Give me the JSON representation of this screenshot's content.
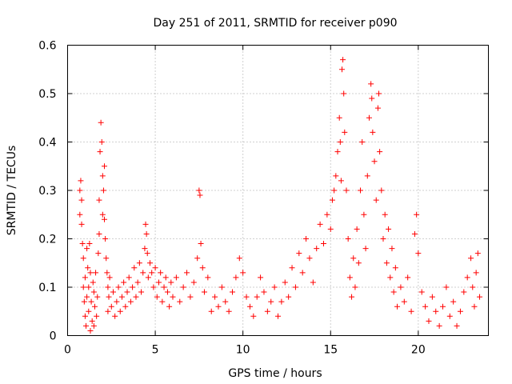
{
  "chart_data": {
    "type": "scatter",
    "title": "Day 251 of 2011, SRMTID for receiver p090",
    "xlabel": "GPS time / hours",
    "ylabel": "SRMTID / TECUs",
    "xlim": [
      0,
      24
    ],
    "ylim": [
      0,
      0.6
    ],
    "xticks": [
      0,
      5,
      10,
      15,
      20
    ],
    "xtick_labels": [
      "0",
      "5",
      "10",
      "15",
      "20"
    ],
    "yticks": [
      0,
      0.1,
      0.2,
      0.3,
      0.4,
      0.5,
      0.6
    ],
    "ytick_labels": [
      "0",
      "0.1",
      "0.2",
      "0.3",
      "0.4",
      "0.5",
      "0.6"
    ],
    "grid": true,
    "marker": "+",
    "color": "#ff0000",
    "series": [
      {
        "name": "SRMTID",
        "points": [
          [
            0.7,
            0.3
          ],
          [
            0.7,
            0.25
          ],
          [
            0.75,
            0.32
          ],
          [
            0.8,
            0.28
          ],
          [
            0.8,
            0.23
          ],
          [
            0.85,
            0.19
          ],
          [
            0.9,
            0.16
          ],
          [
            0.9,
            0.1
          ],
          [
            0.95,
            0.07
          ],
          [
            1.0,
            0.04
          ],
          [
            1.0,
            0.12
          ],
          [
            1.05,
            0.02
          ],
          [
            1.1,
            0.08
          ],
          [
            1.1,
            0.18
          ],
          [
            1.15,
            0.14
          ],
          [
            1.2,
            0.05
          ],
          [
            1.2,
            0.1
          ],
          [
            1.25,
            0.19
          ],
          [
            1.3,
            0.01
          ],
          [
            1.3,
            0.13
          ],
          [
            1.35,
            0.07
          ],
          [
            1.4,
            0.03
          ],
          [
            1.45,
            0.11
          ],
          [
            1.5,
            0.09
          ],
          [
            1.5,
            0.02
          ],
          [
            1.55,
            0.06
          ],
          [
            1.6,
            0.13
          ],
          [
            1.65,
            0.04
          ],
          [
            1.7,
            0.08
          ],
          [
            1.75,
            0.17
          ],
          [
            1.8,
            0.21
          ],
          [
            1.8,
            0.28
          ],
          [
            1.85,
            0.38
          ],
          [
            1.9,
            0.44
          ],
          [
            1.95,
            0.4
          ],
          [
            2.0,
            0.33
          ],
          [
            2.0,
            0.25
          ],
          [
            2.05,
            0.3
          ],
          [
            2.1,
            0.35
          ],
          [
            2.1,
            0.24
          ],
          [
            2.15,
            0.2
          ],
          [
            2.2,
            0.16
          ],
          [
            2.25,
            0.13
          ],
          [
            2.3,
            0.1
          ],
          [
            2.3,
            0.05
          ],
          [
            2.35,
            0.08
          ],
          [
            2.4,
            0.12
          ],
          [
            2.5,
            0.06
          ],
          [
            2.6,
            0.09
          ],
          [
            2.7,
            0.04
          ],
          [
            2.8,
            0.07
          ],
          [
            2.9,
            0.1
          ],
          [
            3.0,
            0.05
          ],
          [
            3.1,
            0.08
          ],
          [
            3.2,
            0.11
          ],
          [
            3.3,
            0.06
          ],
          [
            3.4,
            0.09
          ],
          [
            3.5,
            0.12
          ],
          [
            3.6,
            0.07
          ],
          [
            3.7,
            0.1
          ],
          [
            3.8,
            0.14
          ],
          [
            3.9,
            0.08
          ],
          [
            4.0,
            0.11
          ],
          [
            4.1,
            0.15
          ],
          [
            4.2,
            0.09
          ],
          [
            4.3,
            0.13
          ],
          [
            4.4,
            0.18
          ],
          [
            4.45,
            0.23
          ],
          [
            4.5,
            0.21
          ],
          [
            4.55,
            0.17
          ],
          [
            4.6,
            0.12
          ],
          [
            4.7,
            0.15
          ],
          [
            4.8,
            0.13
          ],
          [
            4.9,
            0.1
          ],
          [
            5.0,
            0.14
          ],
          [
            5.1,
            0.08
          ],
          [
            5.2,
            0.11
          ],
          [
            5.3,
            0.13
          ],
          [
            5.4,
            0.07
          ],
          [
            5.5,
            0.1
          ],
          [
            5.6,
            0.12
          ],
          [
            5.7,
            0.09
          ],
          [
            5.8,
            0.06
          ],
          [
            5.9,
            0.11
          ],
          [
            6.0,
            0.08
          ],
          [
            6.2,
            0.12
          ],
          [
            6.4,
            0.07
          ],
          [
            6.6,
            0.1
          ],
          [
            6.8,
            0.13
          ],
          [
            7.0,
            0.08
          ],
          [
            7.2,
            0.11
          ],
          [
            7.4,
            0.16
          ],
          [
            7.5,
            0.3
          ],
          [
            7.55,
            0.29
          ],
          [
            7.6,
            0.19
          ],
          [
            7.7,
            0.14
          ],
          [
            7.8,
            0.09
          ],
          [
            8.0,
            0.12
          ],
          [
            8.2,
            0.05
          ],
          [
            8.4,
            0.08
          ],
          [
            8.6,
            0.06
          ],
          [
            8.8,
            0.1
          ],
          [
            9.0,
            0.07
          ],
          [
            9.2,
            0.05
          ],
          [
            9.4,
            0.09
          ],
          [
            9.6,
            0.12
          ],
          [
            9.8,
            0.16
          ],
          [
            10.0,
            0.13
          ],
          [
            10.2,
            0.08
          ],
          [
            10.4,
            0.06
          ],
          [
            10.6,
            0.04
          ],
          [
            10.8,
            0.08
          ],
          [
            11.0,
            0.12
          ],
          [
            11.2,
            0.09
          ],
          [
            11.4,
            0.05
          ],
          [
            11.6,
            0.07
          ],
          [
            11.8,
            0.1
          ],
          [
            12.0,
            0.04
          ],
          [
            12.2,
            0.07
          ],
          [
            12.4,
            0.11
          ],
          [
            12.6,
            0.08
          ],
          [
            12.8,
            0.14
          ],
          [
            13.0,
            0.1
          ],
          [
            13.2,
            0.17
          ],
          [
            13.4,
            0.13
          ],
          [
            13.6,
            0.2
          ],
          [
            13.8,
            0.16
          ],
          [
            14.0,
            0.11
          ],
          [
            14.2,
            0.18
          ],
          [
            14.4,
            0.23
          ],
          [
            14.6,
            0.19
          ],
          [
            14.8,
            0.25
          ],
          [
            15.0,
            0.22
          ],
          [
            15.1,
            0.28
          ],
          [
            15.2,
            0.3
          ],
          [
            15.3,
            0.33
          ],
          [
            15.4,
            0.38
          ],
          [
            15.5,
            0.45
          ],
          [
            15.55,
            0.4
          ],
          [
            15.6,
            0.32
          ],
          [
            15.65,
            0.55
          ],
          [
            15.7,
            0.57
          ],
          [
            15.75,
            0.5
          ],
          [
            15.8,
            0.42
          ],
          [
            15.9,
            0.3
          ],
          [
            16.0,
            0.2
          ],
          [
            16.1,
            0.12
          ],
          [
            16.2,
            0.08
          ],
          [
            16.3,
            0.16
          ],
          [
            16.4,
            0.1
          ],
          [
            16.5,
            0.22
          ],
          [
            16.6,
            0.15
          ],
          [
            16.7,
            0.3
          ],
          [
            16.8,
            0.4
          ],
          [
            16.9,
            0.25
          ],
          [
            17.0,
            0.18
          ],
          [
            17.1,
            0.33
          ],
          [
            17.2,
            0.45
          ],
          [
            17.3,
            0.52
          ],
          [
            17.35,
            0.49
          ],
          [
            17.4,
            0.42
          ],
          [
            17.5,
            0.36
          ],
          [
            17.6,
            0.28
          ],
          [
            17.7,
            0.47
          ],
          [
            17.75,
            0.5
          ],
          [
            17.8,
            0.38
          ],
          [
            17.9,
            0.3
          ],
          [
            18.0,
            0.2
          ],
          [
            18.1,
            0.25
          ],
          [
            18.2,
            0.15
          ],
          [
            18.3,
            0.22
          ],
          [
            18.4,
            0.12
          ],
          [
            18.5,
            0.18
          ],
          [
            18.6,
            0.09
          ],
          [
            18.7,
            0.14
          ],
          [
            18.8,
            0.06
          ],
          [
            19.0,
            0.1
          ],
          [
            19.2,
            0.07
          ],
          [
            19.4,
            0.12
          ],
          [
            19.6,
            0.05
          ],
          [
            19.8,
            0.21
          ],
          [
            19.9,
            0.25
          ],
          [
            20.0,
            0.17
          ],
          [
            20.2,
            0.09
          ],
          [
            20.4,
            0.06
          ],
          [
            20.6,
            0.03
          ],
          [
            20.8,
            0.08
          ],
          [
            21.0,
            0.05
          ],
          [
            21.2,
            0.02
          ],
          [
            21.4,
            0.06
          ],
          [
            21.6,
            0.1
          ],
          [
            21.8,
            0.04
          ],
          [
            22.0,
            0.07
          ],
          [
            22.2,
            0.02
          ],
          [
            22.4,
            0.05
          ],
          [
            22.6,
            0.09
          ],
          [
            22.8,
            0.12
          ],
          [
            23.0,
            0.16
          ],
          [
            23.1,
            0.1
          ],
          [
            23.2,
            0.06
          ],
          [
            23.3,
            0.13
          ],
          [
            23.4,
            0.17
          ],
          [
            23.5,
            0.08
          ]
        ]
      }
    ]
  }
}
